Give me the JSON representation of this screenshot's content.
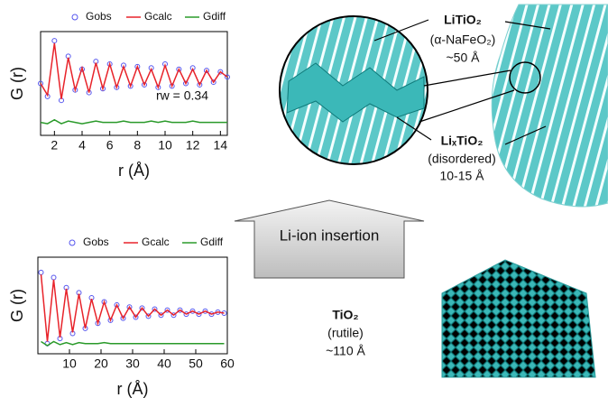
{
  "chart_data": [
    {
      "type": "line",
      "xlabel": "r (Å)",
      "ylabel": "G (r)",
      "annotation": "rw = 0.34",
      "x": [
        1,
        1.5,
        2,
        2.5,
        3,
        3.5,
        4,
        4.5,
        5,
        5.5,
        6,
        6.5,
        7,
        7.5,
        8,
        8.5,
        9,
        9.5,
        10,
        10.5,
        11,
        11.5,
        12,
        12.5,
        13,
        13.5,
        14,
        14.5
      ],
      "series": [
        {
          "name": "Gobs",
          "color": "#5555ee",
          "marker": "o",
          "values": [
            1.5,
            0.5,
            4.8,
            0.2,
            3.6,
            1.0,
            2.6,
            0.8,
            3.2,
            1.1,
            3.0,
            1.2,
            2.9,
            1.3,
            2.8,
            1.4,
            2.7,
            1.2,
            3.0,
            1.3,
            2.6,
            1.5,
            2.7,
            1.4,
            2.5,
            1.6,
            2.4,
            2.0
          ]
        },
        {
          "name": "Gcalc",
          "color": "#e8232a",
          "values": [
            1.5,
            0.6,
            4.6,
            0.3,
            3.5,
            1.0,
            2.7,
            0.8,
            3.1,
            1.1,
            3.0,
            1.2,
            2.8,
            1.3,
            2.8,
            1.4,
            2.6,
            1.2,
            2.9,
            1.3,
            2.6,
            1.5,
            2.6,
            1.4,
            2.5,
            1.6,
            2.4,
            2.0
          ]
        },
        {
          "name": "Gdiff",
          "color": "#2a9a2a",
          "values": [
            -1.5,
            -1.6,
            -1.3,
            -1.6,
            -1.4,
            -1.5,
            -1.6,
            -1.5,
            -1.4,
            -1.5,
            -1.5,
            -1.5,
            -1.4,
            -1.5,
            -1.5,
            -1.5,
            -1.4,
            -1.5,
            -1.4,
            -1.5,
            -1.5,
            -1.5,
            -1.4,
            -1.5,
            -1.5,
            -1.5,
            -1.5,
            -1.5
          ]
        }
      ],
      "xlim": [
        1,
        14.5
      ],
      "xticks": [
        2,
        4,
        6,
        8,
        10,
        12,
        14
      ],
      "ylim": [
        -2.5,
        5.5
      ]
    },
    {
      "type": "line",
      "xlabel": "r (Å)",
      "ylabel": "G (r)",
      "x": [
        1,
        3,
        5,
        7,
        9,
        11,
        13,
        15,
        17,
        19,
        21,
        23,
        25,
        27,
        29,
        31,
        33,
        35,
        37,
        39,
        41,
        43,
        45,
        47,
        49,
        51,
        53,
        55,
        57,
        59
      ],
      "series": [
        {
          "name": "Gobs",
          "color": "#5555ee",
          "marker": "o",
          "values": [
            4.5,
            -2.5,
            4.0,
            -2.0,
            3.0,
            -1.5,
            2.5,
            -1.0,
            2.0,
            -0.5,
            1.6,
            -0.2,
            1.3,
            0.0,
            1.1,
            0.1,
            1.0,
            0.2,
            0.9,
            0.3,
            0.8,
            0.3,
            0.8,
            0.4,
            0.7,
            0.4,
            0.7,
            0.4,
            0.6,
            0.5
          ]
        },
        {
          "name": "Gcalc",
          "color": "#e8232a",
          "values": [
            4.3,
            -2.3,
            3.8,
            -1.9,
            2.9,
            -1.4,
            2.4,
            -1.0,
            1.9,
            -0.5,
            1.6,
            -0.2,
            1.3,
            0.0,
            1.1,
            0.1,
            1.0,
            0.2,
            0.9,
            0.3,
            0.8,
            0.3,
            0.8,
            0.4,
            0.7,
            0.4,
            0.7,
            0.4,
            0.6,
            0.5
          ]
        },
        {
          "name": "Gdiff",
          "color": "#2a9a2a",
          "values": [
            -2.3,
            -2.7,
            -2.3,
            -2.6,
            -2.4,
            -2.6,
            -2.4,
            -2.5,
            -2.5,
            -2.5,
            -2.4,
            -2.5,
            -2.5,
            -2.5,
            -2.5,
            -2.5,
            -2.5,
            -2.5,
            -2.5,
            -2.5,
            -2.5,
            -2.5,
            -2.5,
            -2.5,
            -2.5,
            -2.5,
            -2.5,
            -2.5,
            -2.5,
            -2.5
          ]
        }
      ],
      "xlim": [
        0,
        60
      ],
      "xticks": [
        10,
        20,
        30,
        40,
        50,
        60
      ],
      "ylim": [
        -3.5,
        6
      ]
    }
  ],
  "labels": {
    "litio2": "LiTiO₂",
    "litio2_structure": "(α-NaFeO₂)",
    "litio2_size": "~50 Å",
    "lixtio2": "LiₓTiO₂",
    "lixtio2_structure": "(disordered)",
    "lixtio2_size": "10-15 Å",
    "arrow": "Li-ion insertion",
    "tio2": "TiO₂",
    "tio2_structure": "(rutile)",
    "tio2_size": "~110 Å"
  }
}
